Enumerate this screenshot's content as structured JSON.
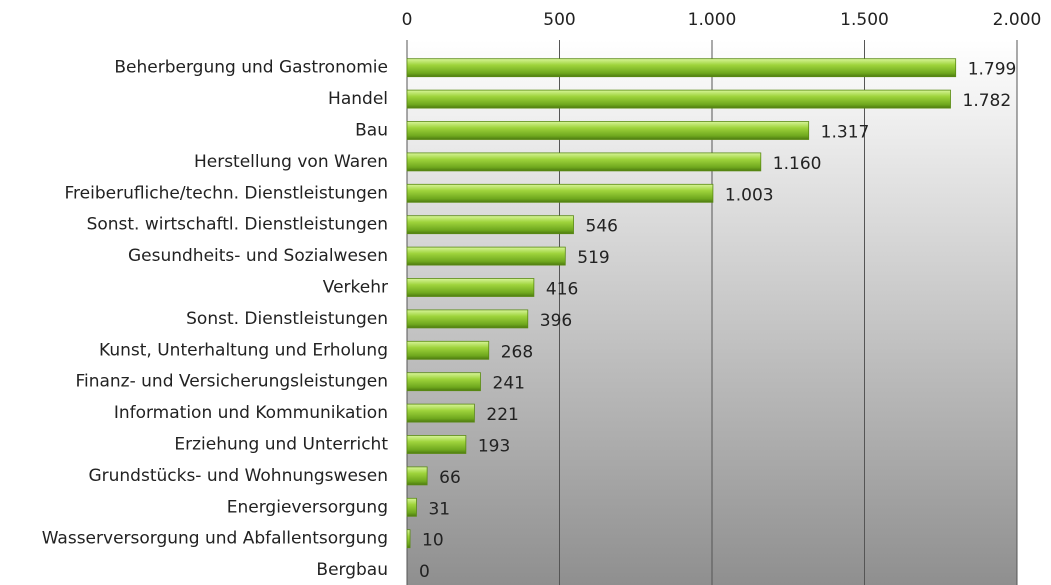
{
  "chart_data": {
    "type": "bar",
    "orientation": "horizontal",
    "categories": [
      "Beherbergung und Gastronomie",
      "Handel",
      "Bau",
      "Herstellung von Waren",
      "Freiberufliche/techn. Dienstleistungen",
      "Sonst. wirtschaftl. Dienstleistungen",
      "Gesundheits- und Sozialwesen",
      "Verkehr",
      "Sonst. Dienstleistungen",
      "Kunst, Unterhaltung und Erholung",
      "Finanz- und Versicherungsleistungen",
      "Information und Kommunikation",
      "Erziehung und Unterricht",
      "Grundstücks- und Wohnungswesen",
      "Energieversorgung",
      "Wasserversorgung und Abfallentsorgung",
      "Bergbau"
    ],
    "values": [
      1799,
      1782,
      1317,
      1160,
      1003,
      546,
      519,
      416,
      396,
      268,
      241,
      221,
      193,
      66,
      31,
      10,
      0
    ],
    "value_labels": [
      "1.799",
      "1.782",
      "1.317",
      "1.160",
      "1.003",
      "546",
      "519",
      "416",
      "396",
      "268",
      "241",
      "221",
      "193",
      "66",
      "31",
      "10",
      "0"
    ],
    "color": "#8cc63f",
    "xlim": [
      0,
      2000
    ],
    "xticks": [
      0,
      500,
      {
        "value": 1000,
        "label": "1.000"
      },
      {
        "value": 1500,
        "label": "1.500"
      },
      {
        "value": 2000,
        "label": "2.000"
      }
    ],
    "grid": true
  }
}
